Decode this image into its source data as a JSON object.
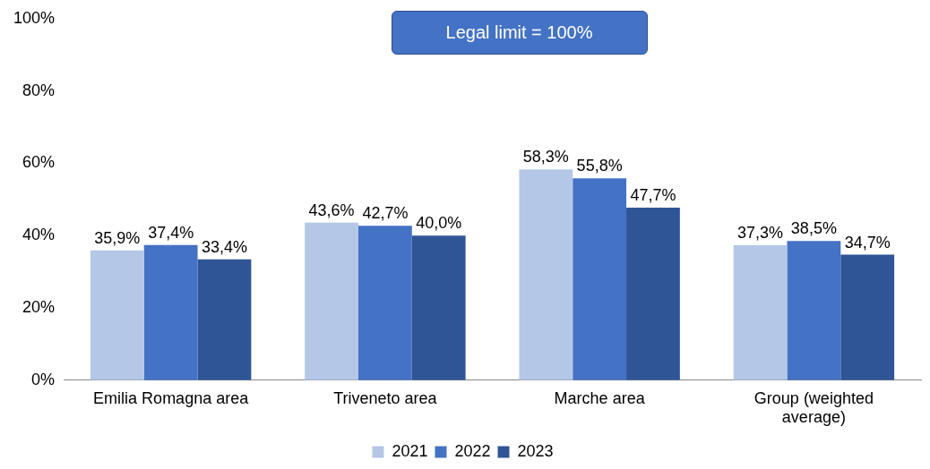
{
  "chart_data": {
    "type": "bar",
    "categories": [
      "Emilia Romagna area",
      "Triveneto area",
      "Marche area",
      "Group (weighted average)"
    ],
    "series": [
      {
        "name": "2021",
        "color": "#b4c7e7",
        "values": [
          35.9,
          43.6,
          58.3,
          37.3
        ],
        "value_labels": [
          "35,9%",
          "43,6%",
          "58,3%",
          "37,3%"
        ]
      },
      {
        "name": "2022",
        "color": "#4472c4",
        "values": [
          37.4,
          42.7,
          55.8,
          38.5
        ],
        "value_labels": [
          "37,4%",
          "42,7%",
          "55,8%",
          "38,5%"
        ]
      },
      {
        "name": "2023",
        "color": "#2f5597",
        "values": [
          33.4,
          40.0,
          47.7,
          34.7
        ],
        "value_labels": [
          "33,4%",
          "40,0%",
          "47,7%",
          "34,7%"
        ]
      }
    ],
    "ylim": [
      0,
      100
    ],
    "yticks": [
      {
        "value": 0,
        "label": "0%"
      },
      {
        "value": 20,
        "label": "20%"
      },
      {
        "value": 40,
        "label": "40%"
      },
      {
        "value": 60,
        "label": "60%"
      },
      {
        "value": 80,
        "label": "80%"
      },
      {
        "value": 100,
        "label": "100%"
      }
    ],
    "annotations": [
      "Legal limit = 100%"
    ],
    "grid": false,
    "legend": "bottom"
  }
}
